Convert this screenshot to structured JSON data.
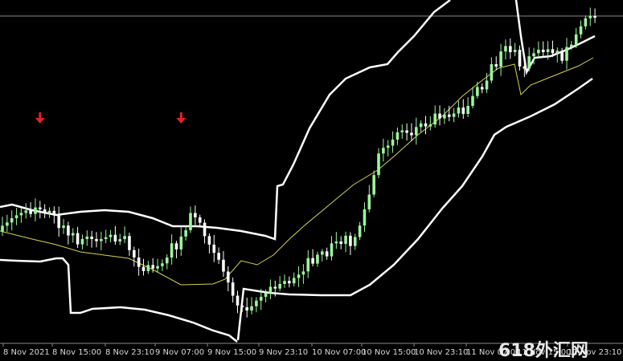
{
  "colors": {
    "background": "#000000",
    "bull_candle": "#9cf59c",
    "bear_candle": "#ffffff",
    "bollinger_band": "#ffffff",
    "moving_average": "#d4d44a",
    "arrow": "#e02424",
    "grid_line": "#8a8a8a",
    "axis_text": "#d8d8d8"
  },
  "time_axis": {
    "labels": [
      "8 Nov 2021",
      "8 Nov 15:00",
      "8 Nov 23:10",
      "9 Nov 07:00",
      "9 Nov 15:00",
      "9 Nov 23:10",
      "10 Nov 07:00",
      "10 Nov 15:00",
      "10 Nov 23:10",
      "11 Nov 07:00",
      "11 Nov 15:00",
      "11 Nov 23:10"
    ]
  },
  "signals": [
    {
      "type": "sell-arrow",
      "bar": 8
    },
    {
      "type": "sell-arrow",
      "bar": 38
    }
  ],
  "watermark": "618外汇网",
  "icons": [
    "down-arrow-icon"
  ]
}
